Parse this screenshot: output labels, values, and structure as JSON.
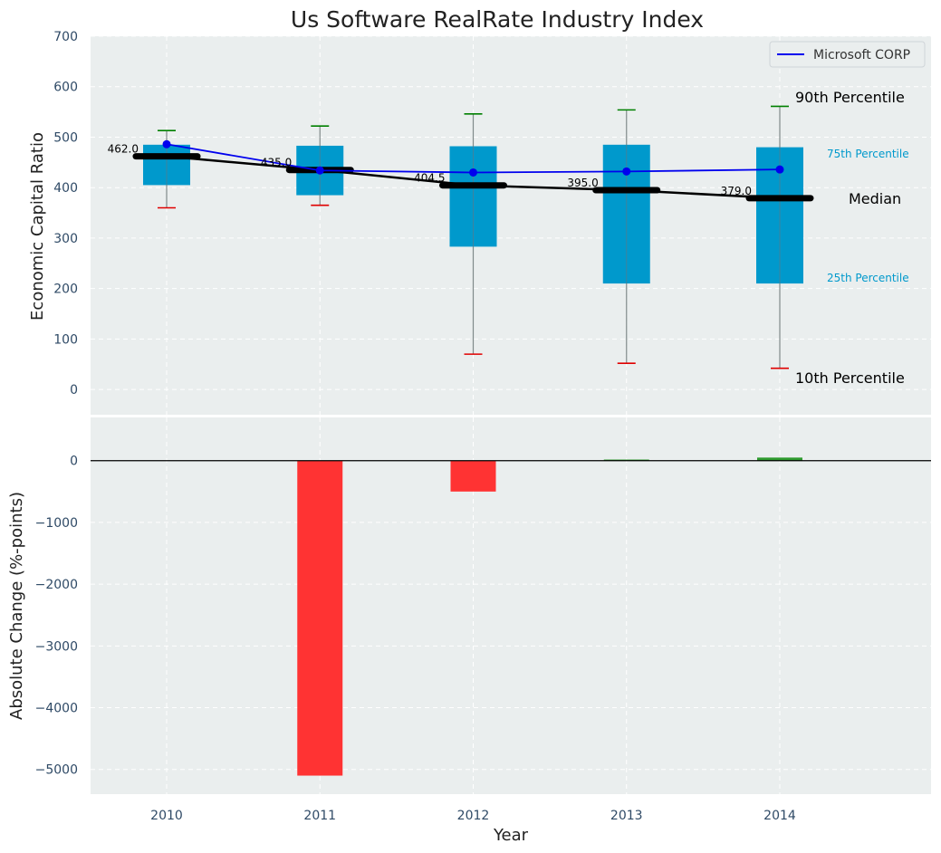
{
  "chart_data": [
    {
      "type": "box",
      "title": "Us Software RealRate Industry Index",
      "ylabel": "Economic Capital Ratio",
      "ylim": [
        -50,
        700
      ],
      "yticks": [
        "0",
        "100",
        "200",
        "300",
        "400",
        "500",
        "600",
        "700"
      ],
      "grid": true,
      "categories": [
        "2010",
        "2011",
        "2012",
        "2013",
        "2014"
      ],
      "p10": [
        360,
        365,
        70,
        52,
        42
      ],
      "p25": [
        405,
        385,
        283,
        210,
        210
      ],
      "median": [
        462.0,
        435.0,
        404.5,
        395.0,
        379.0
      ],
      "median_labels": [
        "462.0",
        "435.0",
        "404.5",
        "395.0",
        "379.0"
      ],
      "p75": [
        485,
        483,
        482,
        485,
        480
      ],
      "p90": [
        513,
        522,
        546,
        554,
        561
      ],
      "series": [
        {
          "name": "Microsoft CORP",
          "values": [
            486,
            434,
            430,
            432,
            436
          ]
        }
      ],
      "legend_position": "top-right",
      "annotations": {
        "p90": "90th Percentile",
        "p75": "75th Percentile",
        "median": "Median",
        "p25": "25th Percentile",
        "p10": "10th Percentile"
      }
    },
    {
      "type": "bar",
      "ylabel": "Absolute Change (%-points)",
      "xlabel": "Year",
      "categories": [
        "2010",
        "2011",
        "2012",
        "2013",
        "2014"
      ],
      "values": [
        0,
        -5100,
        -500,
        18,
        50
      ],
      "ylim": [
        -5400,
        700
      ],
      "yticks": [
        "0",
        "−1000",
        "−2000",
        "−3000",
        "−4000",
        "−5000"
      ],
      "grid": true
    }
  ],
  "colors": {
    "panel_bg": "#eaeeee",
    "box": "#0099cc",
    "p90_cap": "#008000",
    "p10_cap": "#e00000",
    "median_line": "#000000",
    "company_line": "#0000ee",
    "positive_bar": "#2e9a2e",
    "negative_bar": "#ff3333",
    "percentile_label": "#0099cc",
    "tick_text": "#2f4a66"
  }
}
